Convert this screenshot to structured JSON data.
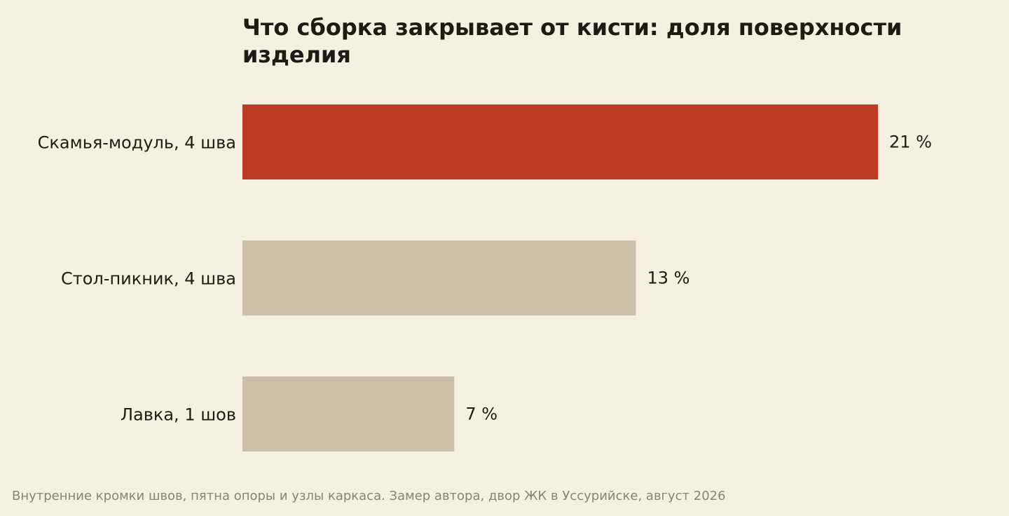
{
  "chart_data": {
    "type": "bar",
    "orientation": "horizontal",
    "title": "Что сборка закрывает от кисти: доля поверхности изделия",
    "categories": [
      "Скамья-модуль, 4 шва",
      "Стол-пикник, 4 шва",
      "Лавка, 1 шов"
    ],
    "values": [
      21,
      13,
      7
    ],
    "value_labels": [
      "21 %",
      "13 %",
      "7 %"
    ],
    "unit": "%",
    "highlight_index": 0,
    "colors": {
      "highlight": "#bc3c26",
      "default": "#cabfa7"
    },
    "xlim": [
      0,
      21
    ],
    "grid": false,
    "axes_visible": false
  },
  "footnote": "Внутренние кромки швов, пятна опоры и узлы каркаса. Замер автора, двор ЖК в Уссурийске, август 2026"
}
